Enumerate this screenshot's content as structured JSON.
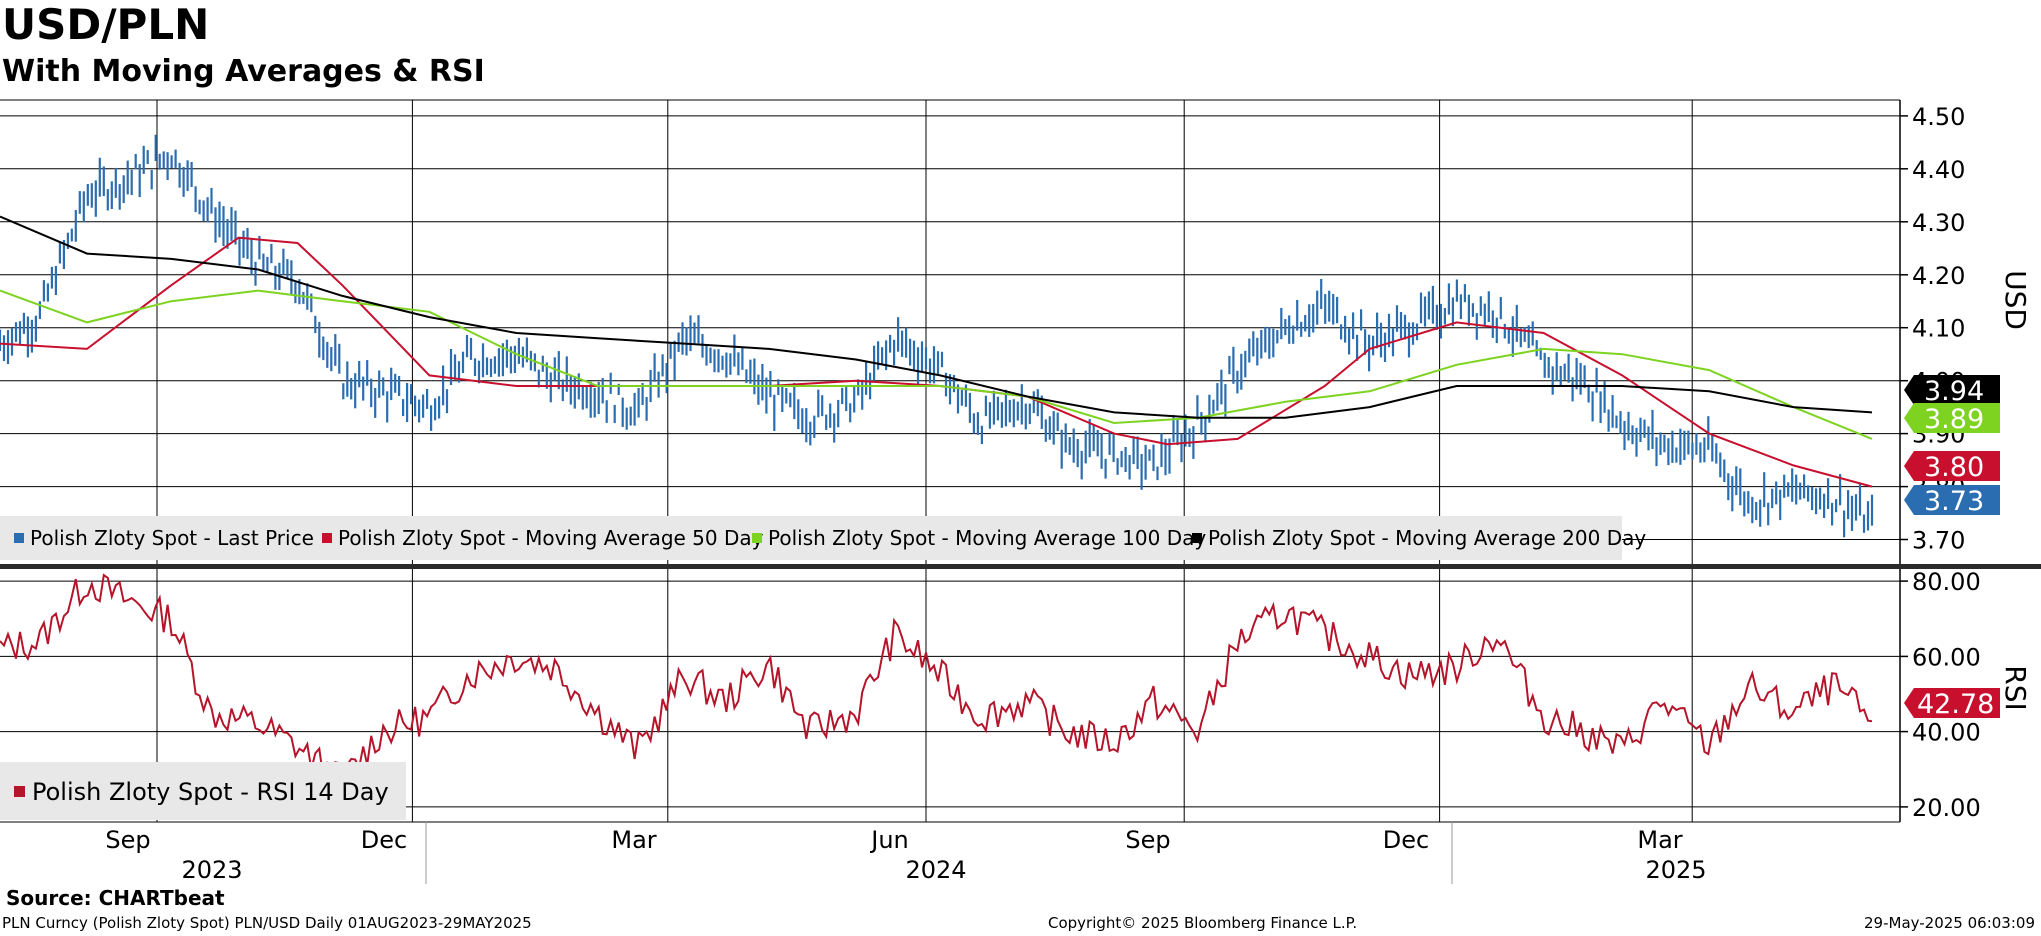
{
  "title": "USD/PLN",
  "subtitle": "With Moving Averages & RSI",
  "source": "Source: CHARTbeat",
  "footer": {
    "left": "PLN Curncy (Polish Zloty Spot) PLN/USD  Daily 01AUG2023-29MAY2025",
    "center": "Copyright© 2025 Bloomberg Finance L.P.",
    "right": "29-May-2025 06:03:09"
  },
  "colors": {
    "price": "#2a6db0",
    "ma50": "#c8102e",
    "ma100": "#7ed321",
    "ma200": "#000000",
    "rsi": "#b5152b",
    "legend_bg": "#e8e8e8",
    "grid": "#000000"
  },
  "chart_data": [
    {
      "type": "line",
      "panel": "price",
      "ylabel": "USD",
      "ylim": [
        3.65,
        4.53
      ],
      "yticks": [
        "4.50",
        "4.40",
        "4.30",
        "4.20",
        "4.10",
        "4.00",
        "3.90",
        "3.80",
        "3.70"
      ],
      "x_month_labels": [
        "Sep",
        "Dec",
        "Mar",
        "Jun",
        "Sep",
        "Dec",
        "Mar"
      ],
      "x_year_labels": [
        "2023",
        "2024",
        "2025"
      ],
      "x_range": [
        "2023-08-01",
        "2025-05-29"
      ],
      "grid": true,
      "legend_position": "bottom-left",
      "series": [
        {
          "name": "Polish Zloty Spot - Last Price",
          "style": "bars",
          "x": [
            "2023-08-01",
            "2023-08-15",
            "2023-09-01",
            "2023-09-15",
            "2023-10-01",
            "2023-10-15",
            "2023-11-01",
            "2023-11-15",
            "2023-12-01",
            "2023-12-15",
            "2024-01-01",
            "2024-01-15",
            "2024-02-01",
            "2024-02-15",
            "2024-03-01",
            "2024-03-15",
            "2024-04-01",
            "2024-04-15",
            "2024-05-01",
            "2024-05-15",
            "2024-06-01",
            "2024-06-15",
            "2024-07-01",
            "2024-07-15",
            "2024-08-01",
            "2024-08-15",
            "2024-09-01",
            "2024-09-15",
            "2024-10-01",
            "2024-10-15",
            "2024-11-01",
            "2024-11-15",
            "2024-12-01",
            "2024-12-15",
            "2025-01-01",
            "2025-01-15",
            "2025-02-01",
            "2025-02-15",
            "2025-03-01",
            "2025-03-15",
            "2025-04-01",
            "2025-04-15",
            "2025-05-01",
            "2025-05-15",
            "2025-05-29"
          ],
          "values": [
            4.07,
            4.12,
            4.35,
            4.38,
            4.43,
            4.32,
            4.22,
            4.19,
            4.0,
            3.98,
            3.95,
            4.04,
            4.05,
            4.0,
            3.98,
            3.94,
            4.08,
            4.05,
            3.97,
            3.93,
            3.96,
            4.08,
            4.02,
            3.92,
            3.96,
            3.88,
            3.86,
            3.84,
            3.92,
            4.02,
            4.1,
            4.14,
            4.07,
            4.1,
            4.15,
            4.13,
            4.03,
            4.0,
            3.92,
            3.88,
            3.87,
            3.77,
            3.79,
            3.78,
            3.73
          ]
        },
        {
          "name": "Polish Zloty Spot - Moving Average 50 Day",
          "style": "line",
          "x": [
            "2023-08-01",
            "2023-09-01",
            "2023-10-01",
            "2023-10-25",
            "2023-11-15",
            "2023-12-01",
            "2024-01-01",
            "2024-02-01",
            "2024-03-01",
            "2024-04-01",
            "2024-05-01",
            "2024-06-01",
            "2024-07-01",
            "2024-08-01",
            "2024-09-01",
            "2024-09-20",
            "2024-10-15",
            "2024-11-15",
            "2024-12-01",
            "2025-01-01",
            "2025-02-01",
            "2025-03-01",
            "2025-04-01",
            "2025-05-01",
            "2025-05-29"
          ],
          "values": [
            4.07,
            4.06,
            4.18,
            4.27,
            4.26,
            4.18,
            4.01,
            3.99,
            3.99,
            3.99,
            3.99,
            4.0,
            3.99,
            3.97,
            3.9,
            3.88,
            3.89,
            3.99,
            4.06,
            4.11,
            4.09,
            4.01,
            3.9,
            3.84,
            3.8
          ]
        },
        {
          "name": "Polish Zloty Spot - Moving Average 100 Day",
          "style": "line",
          "x": [
            "2023-08-01",
            "2023-09-01",
            "2023-10-01",
            "2023-11-01",
            "2023-12-01",
            "2024-01-01",
            "2024-02-01",
            "2024-03-01",
            "2024-04-01",
            "2024-05-01",
            "2024-06-01",
            "2024-07-01",
            "2024-08-01",
            "2024-09-01",
            "2024-10-01",
            "2024-11-01",
            "2024-12-01",
            "2025-01-01",
            "2025-02-01",
            "2025-03-01",
            "2025-04-01",
            "2025-05-01",
            "2025-05-29"
          ],
          "values": [
            4.17,
            4.11,
            4.15,
            4.17,
            4.15,
            4.13,
            4.05,
            3.99,
            3.99,
            3.99,
            3.99,
            3.99,
            3.97,
            3.92,
            3.93,
            3.96,
            3.98,
            4.03,
            4.06,
            4.05,
            4.02,
            3.95,
            3.89
          ]
        },
        {
          "name": "Polish Zloty Spot - Moving Average 200 Day",
          "style": "line",
          "x": [
            "2023-08-01",
            "2023-09-01",
            "2023-10-01",
            "2023-11-01",
            "2023-12-01",
            "2024-01-01",
            "2024-02-01",
            "2024-03-01",
            "2024-04-01",
            "2024-05-01",
            "2024-06-01",
            "2024-07-01",
            "2024-08-01",
            "2024-09-01",
            "2024-10-01",
            "2024-11-01",
            "2024-12-01",
            "2025-01-01",
            "2025-02-01",
            "2025-03-01",
            "2025-04-01",
            "2025-05-01",
            "2025-05-29"
          ],
          "values": [
            4.31,
            4.24,
            4.23,
            4.21,
            4.16,
            4.12,
            4.09,
            4.08,
            4.07,
            4.06,
            4.04,
            4.01,
            3.97,
            3.94,
            3.93,
            3.93,
            3.95,
            3.99,
            3.99,
            3.99,
            3.98,
            3.95,
            3.94
          ]
        }
      ],
      "last_value_labels": [
        {
          "series": "Polish Zloty Spot - Moving Average 200 Day",
          "text": "3.94"
        },
        {
          "series": "Polish Zloty Spot - Moving Average 100 Day",
          "text": "3.89"
        },
        {
          "series": "Polish Zloty Spot - Moving Average 50 Day",
          "text": "3.80"
        },
        {
          "series": "Polish Zloty Spot - Last Price",
          "text": "3.73"
        }
      ]
    },
    {
      "type": "line",
      "panel": "rsi",
      "ylabel": "RSI",
      "ylim": [
        16,
        84
      ],
      "yticks": [
        "80.00",
        "60.00",
        "40.00",
        "20.00"
      ],
      "grid": true,
      "legend_position": "bottom-left",
      "series": [
        {
          "name": "Polish Zloty Spot - RSI 14 Day",
          "x": [
            "2023-08-01",
            "2023-08-15",
            "2023-09-01",
            "2023-09-15",
            "2023-10-01",
            "2023-10-15",
            "2023-11-01",
            "2023-11-15",
            "2023-12-01",
            "2023-12-15",
            "2024-01-01",
            "2024-01-15",
            "2024-02-01",
            "2024-02-15",
            "2024-03-01",
            "2024-03-15",
            "2024-04-01",
            "2024-04-15",
            "2024-05-01",
            "2024-05-15",
            "2024-06-01",
            "2024-06-15",
            "2024-07-01",
            "2024-07-15",
            "2024-08-01",
            "2024-08-15",
            "2024-09-01",
            "2024-09-15",
            "2024-10-01",
            "2024-10-15",
            "2024-11-01",
            "2024-11-15",
            "2024-12-01",
            "2024-12-15",
            "2025-01-01",
            "2025-01-15",
            "2025-02-01",
            "2025-02-15",
            "2025-03-01",
            "2025-03-15",
            "2025-04-01",
            "2025-04-15",
            "2025-05-01",
            "2025-05-15",
            "2025-05-29"
          ],
          "values": [
            62,
            64,
            80,
            75,
            70,
            45,
            42,
            36,
            27,
            40,
            44,
            55,
            60,
            57,
            45,
            35,
            55,
            48,
            58,
            40,
            45,
            66,
            55,
            44,
            48,
            40,
            37,
            48,
            40,
            64,
            72,
            66,
            60,
            55,
            57,
            66,
            44,
            40,
            35,
            48,
            36,
            52,
            45,
            52,
            42.78
          ]
        }
      ],
      "last_value_label": "42.78"
    }
  ],
  "legend": {
    "price_items": [
      "Polish Zloty Spot - Last Price",
      "Polish Zloty Spot - Moving Average 50 Day",
      "Polish Zloty Spot - Moving Average 100 Day",
      "Polish Zloty Spot - Moving Average 200 Day"
    ],
    "rsi_items": [
      "Polish Zloty Spot - RSI 14 Day"
    ]
  }
}
